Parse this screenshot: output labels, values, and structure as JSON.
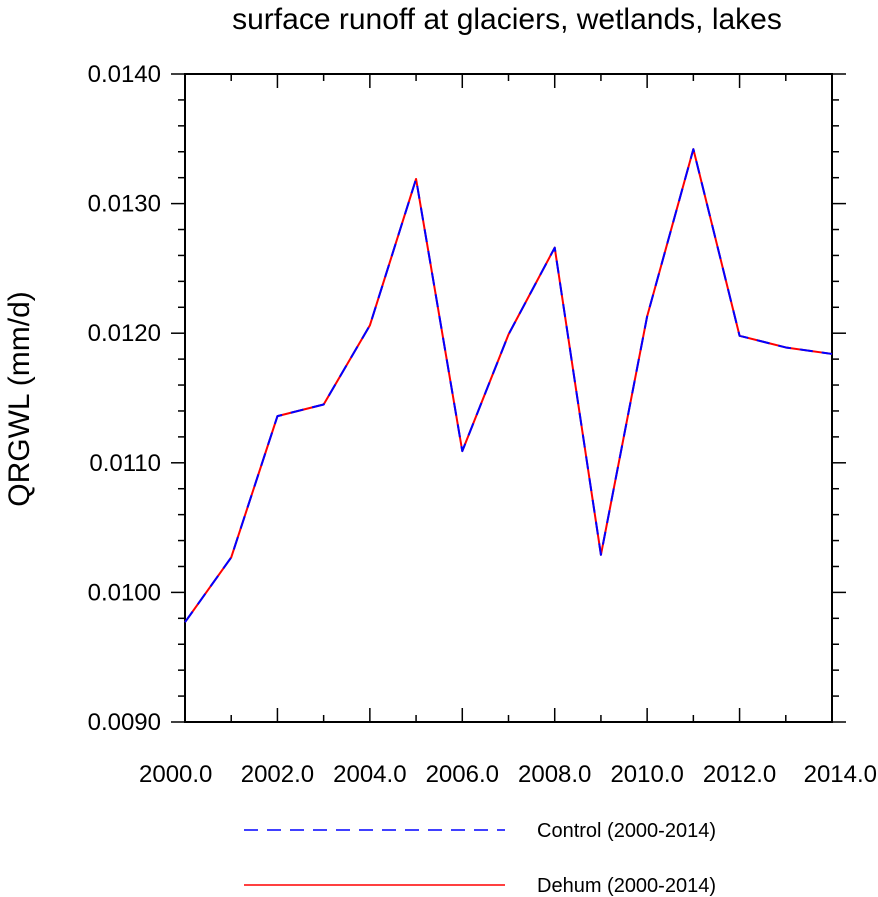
{
  "chart_data": {
    "type": "line",
    "title": "surface runoff at glaciers, wetlands, lakes",
    "ylabel": "QRGWL  (mm/d)",
    "xlabel": "",
    "xlim": [
      2000,
      2014
    ],
    "ylim": [
      0.009,
      0.014
    ],
    "x_ticks": [
      2000,
      2002,
      2004,
      2006,
      2008,
      2010,
      2012,
      2014
    ],
    "x_tick_labels": [
      "2000.0",
      "2002.0",
      "2004.0",
      "2006.0",
      "2008.0",
      "2010.0",
      "2012.0",
      "2014.0"
    ],
    "y_ticks": [
      0.009,
      0.01,
      0.011,
      0.012,
      0.013,
      0.014
    ],
    "y_tick_labels": [
      "0.0090",
      "0.0100",
      "0.0110",
      "0.0120",
      "0.0130",
      "0.0140"
    ],
    "grid": false,
    "legend_placement": "bottom",
    "x": [
      2000,
      2001,
      2002,
      2003,
      2004,
      2005,
      2006,
      2007,
      2008,
      2009,
      2010,
      2011,
      2012,
      2013,
      2014
    ],
    "series": [
      {
        "name": "Control (2000-2014)",
        "color": "#0000ff",
        "dash": "dashed",
        "values": [
          0.00977,
          0.01027,
          0.01136,
          0.01145,
          0.01206,
          0.01319,
          0.01109,
          0.01199,
          0.01266,
          0.01029,
          0.01213,
          0.01342,
          0.01198,
          0.01189,
          0.01184
        ]
      },
      {
        "name": "Dehum (2000-2014)",
        "color": "#ff0000",
        "dash": "solid",
        "values": [
          0.00977,
          0.01027,
          0.01136,
          0.01145,
          0.01206,
          0.01319,
          0.01109,
          0.01199,
          0.01266,
          0.01029,
          0.01213,
          0.01342,
          0.01198,
          0.01189,
          0.01184
        ]
      }
    ]
  }
}
